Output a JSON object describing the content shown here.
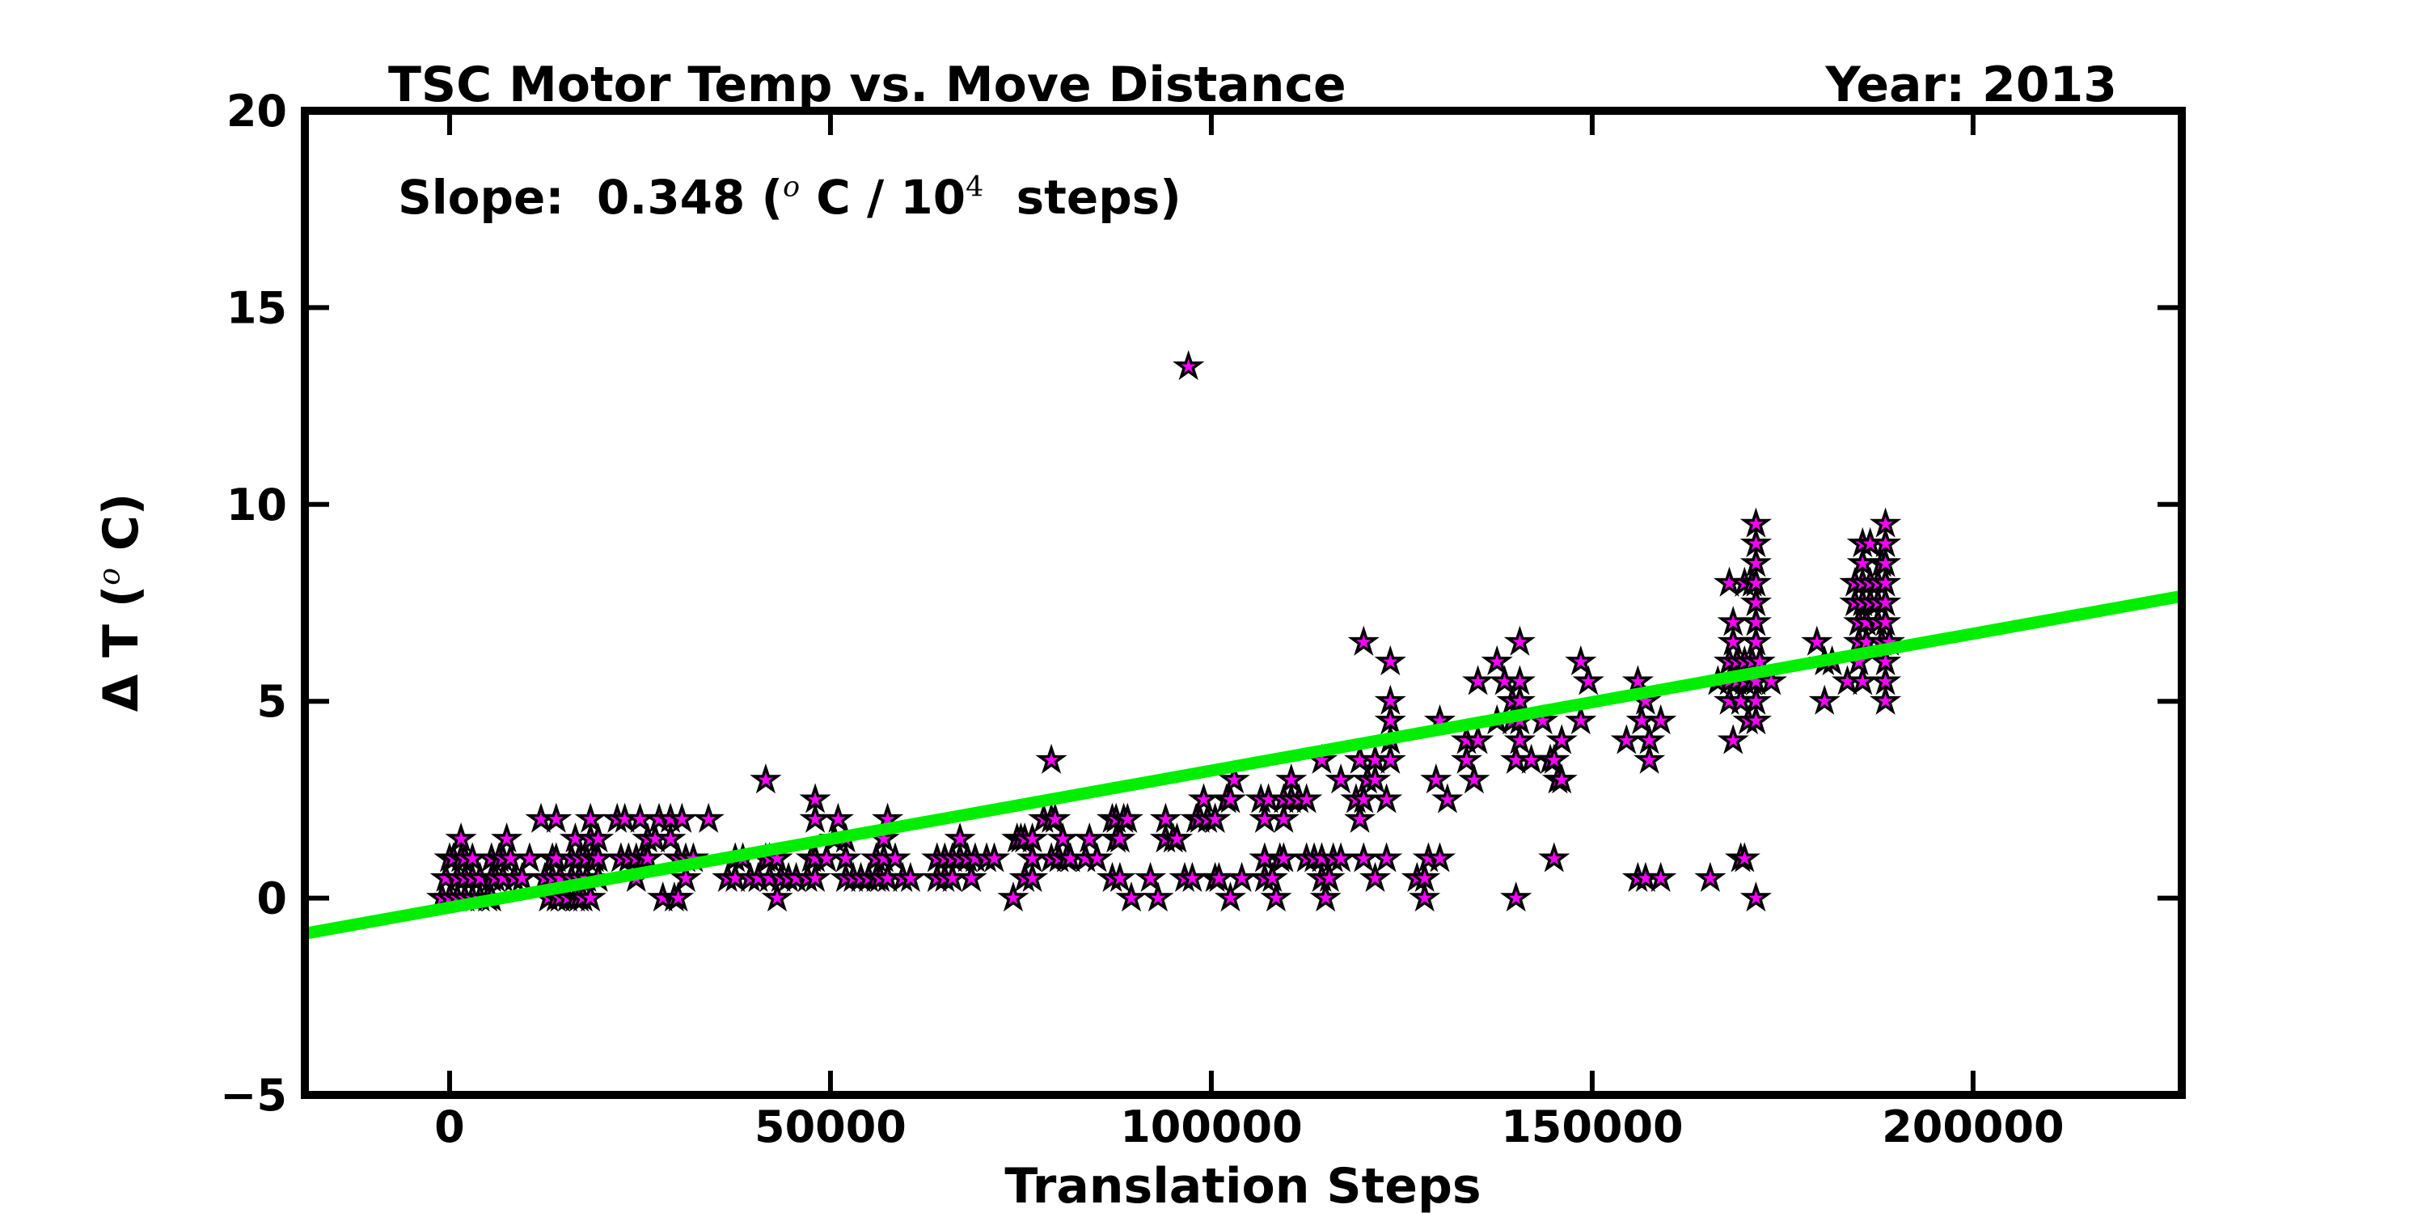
{
  "header": {
    "title": "TSC Motor Temp vs. Move Distance",
    "year_label": "Year: 2013"
  },
  "annotation": {
    "slope": {
      "pre": "Slope:  0.348 (",
      "deg": "o",
      "mid": " C / 10",
      "exp": "4",
      "post": "  steps)"
    }
  },
  "ylabel_parts": {
    "pre": "Δ T (",
    "deg": "o",
    "post": " C)"
  },
  "chart_data": {
    "type": "scatter",
    "title": "TSC Motor Temp vs. Move Distance",
    "subtitle": "Year: 2013",
    "annotation_text": "Slope:  0.348 (°C / 10⁴ steps)",
    "xlabel": "Translation Steps",
    "ylabel": "Δ T (°C)",
    "xlim": [
      -19000,
      227400
    ],
    "ylim": [
      -5,
      20
    ],
    "grid": false,
    "legend": "none",
    "xticks": {
      "values": [
        0,
        50000,
        100000,
        150000,
        200000
      ],
      "labels": [
        "0",
        "50000",
        "100000",
        "150000",
        "200000"
      ]
    },
    "yticks": {
      "values": [
        -5,
        0,
        5,
        10,
        15,
        20
      ],
      "labels": [
        "−5",
        "0",
        "5",
        "10",
        "15",
        "20"
      ]
    },
    "marker": {
      "shape": "star",
      "fill": "#ff00ff",
      "edge": "#000000",
      "outer_radius": 15,
      "inner_radius": 5.8,
      "edge_width": 3.5
    },
    "fit_line": {
      "color": "#00ee00",
      "width": 15,
      "slope_degC_per_10k_steps": 0.348,
      "intercept_degC": -0.24,
      "x1": -19000,
      "y1": -0.9,
      "x2": 227400,
      "y2": 7.67
    },
    "points": [
      [
        -1000,
        0
      ],
      [
        0,
        0
      ],
      [
        1000,
        0
      ],
      [
        2000,
        0
      ],
      [
        3000,
        0
      ],
      [
        4000,
        0
      ],
      [
        5000,
        0
      ],
      [
        5500,
        0
      ],
      [
        13000,
        0
      ],
      [
        14000,
        0
      ],
      [
        14500,
        0
      ],
      [
        15500,
        0
      ],
      [
        16500,
        0
      ],
      [
        17000,
        0
      ],
      [
        17500,
        0
      ],
      [
        18500,
        0
      ],
      [
        28000,
        0
      ],
      [
        29500,
        0
      ],
      [
        30000,
        0
      ],
      [
        43000,
        0
      ],
      [
        -500,
        0.5
      ],
      [
        1000,
        0.5
      ],
      [
        2000,
        0.5
      ],
      [
        3000,
        0.5
      ],
      [
        4000,
        0.5
      ],
      [
        5500,
        0.5
      ],
      [
        6000,
        0.5
      ],
      [
        7000,
        0.5
      ],
      [
        8500,
        0.5
      ],
      [
        9500,
        0.5
      ],
      [
        12500,
        0.5
      ],
      [
        13500,
        0.5
      ],
      [
        14500,
        0.5
      ],
      [
        16000,
        0.5
      ],
      [
        17000,
        0.5
      ],
      [
        18000,
        0.5
      ],
      [
        19500,
        0.5
      ],
      [
        24500,
        0.5
      ],
      [
        31000,
        0.5
      ],
      [
        36500,
        0.5
      ],
      [
        37500,
        0.5
      ],
      [
        39500,
        0.5
      ],
      [
        40500,
        0.5
      ],
      [
        42000,
        0.5
      ],
      [
        43500,
        0.5
      ],
      [
        44500,
        0.5
      ],
      [
        45500,
        0.5
      ],
      [
        47000,
        0.5
      ],
      [
        48000,
        0.5
      ],
      [
        0,
        1
      ],
      [
        500,
        1
      ],
      [
        1500,
        1
      ],
      [
        2000,
        1
      ],
      [
        3000,
        1
      ],
      [
        5500,
        1
      ],
      [
        6500,
        1
      ],
      [
        7000,
        1
      ],
      [
        8000,
        1
      ],
      [
        10500,
        1
      ],
      [
        13500,
        1
      ],
      [
        14000,
        1
      ],
      [
        16000,
        1
      ],
      [
        17000,
        1
      ],
      [
        18000,
        1
      ],
      [
        19000,
        1
      ],
      [
        19500,
        1
      ],
      [
        22500,
        1
      ],
      [
        23500,
        1
      ],
      [
        24500,
        1
      ],
      [
        25500,
        1
      ],
      [
        26000,
        1
      ],
      [
        30000,
        1
      ],
      [
        31000,
        1
      ],
      [
        32000,
        1
      ],
      [
        37500,
        1
      ],
      [
        38500,
        1
      ],
      [
        41500,
        1
      ],
      [
        42000,
        1
      ],
      [
        43000,
        1
      ],
      [
        47500,
        1
      ],
      [
        48000,
        1
      ],
      [
        1500,
        1.5
      ],
      [
        7500,
        1.5
      ],
      [
        16500,
        1.5
      ],
      [
        18500,
        1.5
      ],
      [
        19500,
        1.5
      ],
      [
        26000,
        1.5
      ],
      [
        27000,
        1.5
      ],
      [
        29000,
        1.5
      ],
      [
        50500,
        1.5
      ],
      [
        12000,
        2
      ],
      [
        14000,
        2
      ],
      [
        18500,
        2
      ],
      [
        22000,
        2
      ],
      [
        23000,
        2
      ],
      [
        25000,
        2
      ],
      [
        27500,
        2
      ],
      [
        29000,
        2
      ],
      [
        30500,
        2
      ],
      [
        34000,
        2
      ],
      [
        48000,
        2
      ],
      [
        48000,
        2.5
      ],
      [
        41500,
        3
      ],
      [
        74000,
        0
      ],
      [
        89500,
        0
      ],
      [
        93000,
        0
      ],
      [
        52000,
        0.5
      ],
      [
        53000,
        0.5
      ],
      [
        54000,
        0.5
      ],
      [
        55000,
        0.5
      ],
      [
        56000,
        0.5
      ],
      [
        56500,
        0.5
      ],
      [
        57500,
        0.5
      ],
      [
        59500,
        0.5
      ],
      [
        60500,
        0.5
      ],
      [
        64000,
        0.5
      ],
      [
        65000,
        0.5
      ],
      [
        66000,
        0.5
      ],
      [
        68500,
        0.5
      ],
      [
        75500,
        0.5
      ],
      [
        76500,
        0.5
      ],
      [
        87000,
        0.5
      ],
      [
        88000,
        0.5
      ],
      [
        92000,
        0.5
      ],
      [
        96500,
        0.5
      ],
      [
        97500,
        0.5
      ],
      [
        100500,
        0.5
      ],
      [
        49500,
        1
      ],
      [
        52000,
        1
      ],
      [
        56000,
        1
      ],
      [
        57000,
        1
      ],
      [
        58500,
        1
      ],
      [
        64000,
        1
      ],
      [
        65000,
        1
      ],
      [
        66000,
        1
      ],
      [
        67000,
        1
      ],
      [
        68000,
        1
      ],
      [
        69000,
        1
      ],
      [
        70500,
        1
      ],
      [
        71500,
        1
      ],
      [
        76500,
        1
      ],
      [
        79000,
        1
      ],
      [
        80000,
        1
      ],
      [
        81000,
        1
      ],
      [
        81500,
        1
      ],
      [
        83500,
        1
      ],
      [
        85000,
        1
      ],
      [
        52000,
        1.5
      ],
      [
        57000,
        1.5
      ],
      [
        67000,
        1.5
      ],
      [
        74500,
        1.5
      ],
      [
        75000,
        1.5
      ],
      [
        75500,
        1.5
      ],
      [
        76500,
        1.5
      ],
      [
        80500,
        1.5
      ],
      [
        84000,
        1.5
      ],
      [
        87500,
        1.5
      ],
      [
        88000,
        1.5
      ],
      [
        94000,
        1.5
      ],
      [
        95000,
        1.5
      ],
      [
        95500,
        1.5
      ],
      [
        51000,
        2
      ],
      [
        57500,
        2
      ],
      [
        78000,
        2
      ],
      [
        79000,
        2
      ],
      [
        79500,
        2
      ],
      [
        87000,
        2
      ],
      [
        87500,
        2
      ],
      [
        88500,
        2
      ],
      [
        89000,
        2
      ],
      [
        94000,
        2
      ],
      [
        98000,
        2
      ],
      [
        98500,
        2
      ],
      [
        99500,
        2
      ],
      [
        100500,
        2
      ],
      [
        99000,
        2.5
      ],
      [
        79000,
        3.5
      ],
      [
        97000,
        13.5
      ],
      [
        102500,
        0
      ],
      [
        108500,
        0
      ],
      [
        115000,
        0
      ],
      [
        128000,
        0
      ],
      [
        140000,
        0
      ],
      [
        101000,
        0.5
      ],
      [
        104000,
        0.5
      ],
      [
        107000,
        0.5
      ],
      [
        108000,
        0.5
      ],
      [
        114500,
        0.5
      ],
      [
        115500,
        0.5
      ],
      [
        121500,
        0.5
      ],
      [
        127000,
        0.5
      ],
      [
        128000,
        0.5
      ],
      [
        107000,
        1
      ],
      [
        109000,
        1
      ],
      [
        109500,
        1
      ],
      [
        112500,
        1
      ],
      [
        113500,
        1
      ],
      [
        114500,
        1
      ],
      [
        116000,
        1
      ],
      [
        117000,
        1
      ],
      [
        120000,
        1
      ],
      [
        123000,
        1
      ],
      [
        128500,
        1
      ],
      [
        130000,
        1
      ],
      [
        145000,
        1
      ],
      [
        100500,
        2
      ],
      [
        107000,
        2
      ],
      [
        109500,
        2
      ],
      [
        119500,
        2
      ],
      [
        102000,
        2.5
      ],
      [
        102500,
        2.5
      ],
      [
        106500,
        2.5
      ],
      [
        107500,
        2.5
      ],
      [
        109500,
        2.5
      ],
      [
        110500,
        2.5
      ],
      [
        111500,
        2.5
      ],
      [
        112500,
        2.5
      ],
      [
        119000,
        2.5
      ],
      [
        120000,
        2.5
      ],
      [
        123000,
        2.5
      ],
      [
        131000,
        2.5
      ],
      [
        103000,
        3
      ],
      [
        110500,
        3
      ],
      [
        117000,
        3
      ],
      [
        120500,
        3
      ],
      [
        121500,
        3
      ],
      [
        129500,
        3
      ],
      [
        134500,
        3
      ],
      [
        145500,
        3
      ],
      [
        146000,
        3
      ],
      [
        114500,
        3.5
      ],
      [
        119500,
        3.5
      ],
      [
        121500,
        3.5
      ],
      [
        123500,
        3.5
      ],
      [
        133500,
        3.5
      ],
      [
        140000,
        3.5
      ],
      [
        142000,
        3.5
      ],
      [
        144500,
        3.5
      ],
      [
        145000,
        3.5
      ],
      [
        157500,
        3.5
      ],
      [
        123500,
        4
      ],
      [
        133500,
        4
      ],
      [
        135000,
        4
      ],
      [
        140500,
        4
      ],
      [
        146000,
        4
      ],
      [
        154500,
        4
      ],
      [
        157500,
        4
      ],
      [
        168500,
        4
      ],
      [
        123500,
        4.5
      ],
      [
        130000,
        4.5
      ],
      [
        137500,
        4.5
      ],
      [
        139500,
        4.5
      ],
      [
        140500,
        4.5
      ],
      [
        143500,
        4.5
      ],
      [
        148500,
        4.5
      ],
      [
        156500,
        4.5
      ],
      [
        159000,
        4.5
      ],
      [
        170500,
        4.5
      ],
      [
        171500,
        4.5
      ],
      [
        123500,
        5
      ],
      [
        139500,
        5
      ],
      [
        140500,
        5
      ],
      [
        157000,
        5
      ],
      [
        168000,
        5
      ],
      [
        169500,
        5
      ],
      [
        171500,
        5
      ],
      [
        180500,
        5
      ],
      [
        188500,
        5
      ],
      [
        135000,
        5.5
      ],
      [
        138500,
        5.5
      ],
      [
        140500,
        5.5
      ],
      [
        149500,
        5.5
      ],
      [
        156000,
        5.5
      ],
      [
        166500,
        5.5
      ],
      [
        168000,
        5.5
      ],
      [
        169000,
        5.5
      ],
      [
        170000,
        5.5
      ],
      [
        171000,
        5.5
      ],
      [
        171500,
        5.5
      ],
      [
        173500,
        5.5
      ],
      [
        183500,
        5.5
      ],
      [
        185500,
        5.5
      ],
      [
        188500,
        5.5
      ],
      [
        123500,
        6
      ],
      [
        137500,
        6
      ],
      [
        148500,
        6
      ],
      [
        168000,
        6
      ],
      [
        169000,
        6
      ],
      [
        170000,
        6
      ],
      [
        171000,
        6
      ],
      [
        172000,
        6
      ],
      [
        180500,
        6
      ],
      [
        181500,
        6
      ],
      [
        185000,
        6
      ],
      [
        188500,
        6
      ],
      [
        120000,
        6.5
      ],
      [
        140500,
        6.5
      ],
      [
        168500,
        6.5
      ],
      [
        171500,
        6.5
      ],
      [
        179500,
        6.5
      ],
      [
        185000,
        6.5
      ],
      [
        186000,
        6.5
      ],
      [
        188000,
        6.5
      ],
      [
        189000,
        6.5
      ],
      [
        168500,
        7
      ],
      [
        171500,
        7
      ],
      [
        185000,
        7
      ],
      [
        186000,
        7
      ],
      [
        187500,
        7
      ],
      [
        188500,
        7
      ],
      [
        171500,
        7.5
      ],
      [
        184500,
        7.5
      ],
      [
        185500,
        7.5
      ],
      [
        186500,
        7.5
      ],
      [
        187500,
        7.5
      ],
      [
        188500,
        7.5
      ],
      [
        168000,
        8
      ],
      [
        170000,
        8
      ],
      [
        171000,
        8
      ],
      [
        171500,
        8
      ],
      [
        184500,
        8
      ],
      [
        185500,
        8
      ],
      [
        186500,
        8
      ],
      [
        187500,
        8
      ],
      [
        188500,
        8
      ],
      [
        171500,
        8.5
      ],
      [
        185500,
        8.5
      ],
      [
        188000,
        8.5
      ],
      [
        188500,
        8.5
      ],
      [
        171500,
        9
      ],
      [
        185500,
        9
      ],
      [
        186500,
        9
      ],
      [
        188500,
        9
      ],
      [
        171500,
        9.5
      ],
      [
        188500,
        9.5
      ],
      [
        169500,
        1
      ],
      [
        170000,
        1
      ],
      [
        156000,
        0.5
      ],
      [
        157000,
        0.5
      ],
      [
        159000,
        0.5
      ],
      [
        165500,
        0.5
      ],
      [
        171500,
        0
      ]
    ]
  }
}
